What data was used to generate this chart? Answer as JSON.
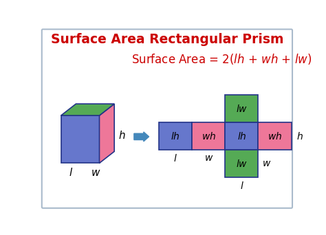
{
  "title": "Surface Area Rectangular Prism",
  "title_color": "#cc0000",
  "formula_color": "#cc0000",
  "bg_color": "#ffffff",
  "border_color": "#aabbcc",
  "blue_color": "#6677cc",
  "pink_color": "#ee7799",
  "green_color": "#55aa55",
  "arrow_color": "#4488bb",
  "navy": "#223388"
}
